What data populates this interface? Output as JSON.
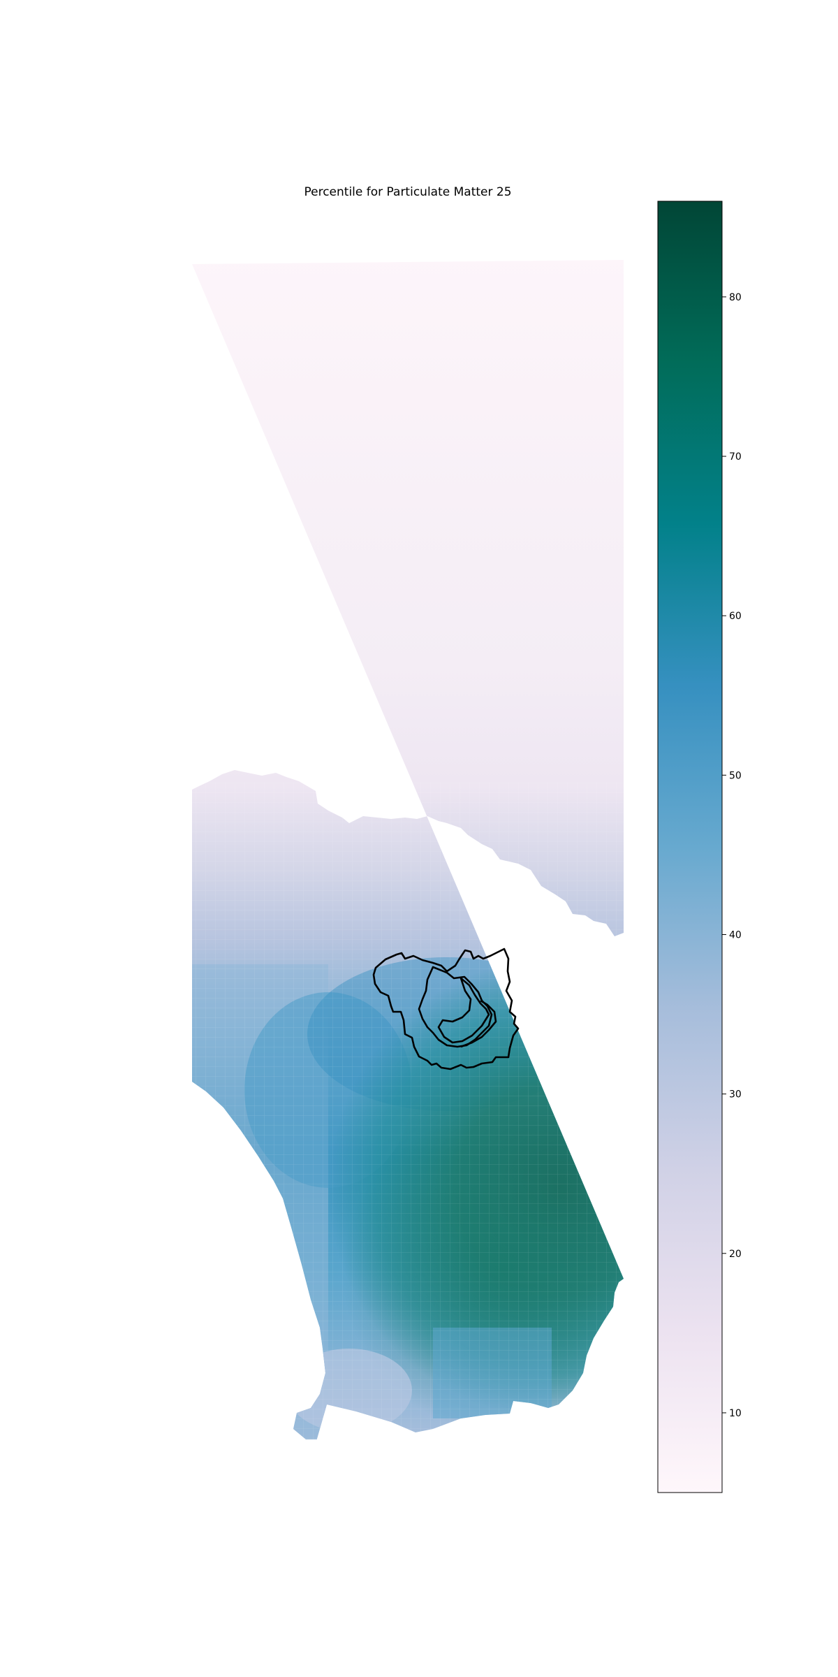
{
  "title": "Percentile for Particulate Matter 25",
  "colorbar": {
    "colormap": "PuBuGn",
    "min": 5,
    "max": 86,
    "ticks": [
      {
        "value": 10,
        "label": "10"
      },
      {
        "value": 20,
        "label": "20"
      },
      {
        "value": 30,
        "label": "30"
      },
      {
        "value": 40,
        "label": "40"
      },
      {
        "value": 50,
        "label": "50"
      },
      {
        "value": 60,
        "label": "60"
      },
      {
        "value": 70,
        "label": "70"
      },
      {
        "value": 80,
        "label": "80"
      }
    ],
    "color_stops": [
      "#fff7fb",
      "#ece2f0",
      "#d0d1e6",
      "#a6bddb",
      "#67a9cf",
      "#3690c0",
      "#02818a",
      "#016c59",
      "#014636"
    ]
  },
  "map": {
    "background": "#ffffff",
    "region_outline_color": "#000000"
  }
}
